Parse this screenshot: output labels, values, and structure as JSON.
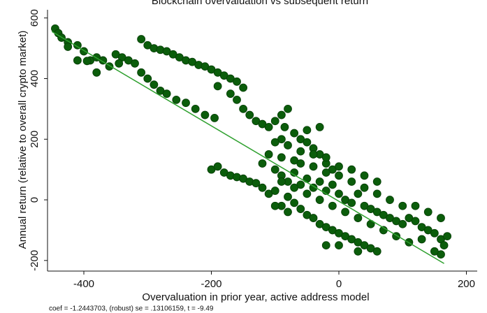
{
  "chart_data": {
    "type": "scatter",
    "title": "Blockchain overvaluation vs subsequent return",
    "x_label": "Overvaluation in prior year, active address model",
    "y_label": "Annual return (relative to overall crypto market)",
    "note": "coef = -1.2443703, (robust) se = .13106159, t = -9.49",
    "xlim": [
      -457,
      217
    ],
    "ylim": [
      -235,
      627
    ],
    "xticks": [
      -400,
      -200,
      0,
      200
    ],
    "yticks": [
      -200,
      0,
      200,
      400,
      600
    ],
    "grid": false,
    "series": [
      {
        "color": "#0b5d0b",
        "x": [
          -445,
          -440,
          -435,
          -425,
          -410,
          -400,
          -390,
          -380,
          -370,
          -360,
          -350,
          -340,
          -330,
          -320,
          -310,
          -300,
          -290,
          -280,
          -270,
          -255,
          -240,
          -225,
          -210,
          -195,
          -380,
          -395,
          -410,
          -345,
          -425,
          -310,
          -300,
          -290,
          -280,
          -270,
          -260,
          -250,
          -240,
          -230,
          -220,
          -210,
          -200,
          -190,
          -180,
          -170,
          -160,
          -150,
          -190,
          -170,
          -160,
          -150,
          -140,
          -130,
          -120,
          -110,
          -100,
          -90,
          -80,
          -85,
          -70,
          -60,
          -50,
          -40,
          -30,
          -20,
          -10,
          -200,
          -190,
          -180,
          -170,
          -160,
          -150,
          -140,
          -130,
          -120,
          -110,
          -100,
          -90,
          -80,
          -70,
          -60,
          -50,
          -40,
          -30,
          -20,
          -10,
          0,
          10,
          20,
          30,
          40,
          50,
          60,
          70,
          80,
          90,
          100,
          110,
          120,
          130,
          140,
          150,
          160,
          165,
          160,
          150,
          -80,
          -70,
          -60,
          -50,
          -40,
          -30,
          -20,
          -10,
          0,
          10,
          20,
          30,
          40,
          50,
          60,
          0,
          -20,
          30,
          -60,
          -40,
          -20,
          0,
          20,
          40,
          60,
          80,
          100,
          120,
          140,
          160,
          170,
          130,
          110,
          90,
          70,
          50,
          30,
          10,
          -10,
          -30,
          -50,
          -70,
          -90,
          -60,
          -40,
          -20,
          0,
          20,
          40,
          60,
          -90,
          -80,
          -50,
          -30,
          -100,
          -110,
          -120,
          -90,
          -70,
          -100,
          -90,
          -80,
          -100
        ],
        "values": [
          565,
          550,
          535,
          520,
          510,
          490,
          460,
          470,
          460,
          440,
          480,
          470,
          460,
          450,
          420,
          400,
          380,
          360,
          350,
          330,
          320,
          300,
          280,
          270,
          420,
          458,
          460,
          450,
          505,
          530,
          510,
          500,
          495,
          490,
          480,
          470,
          460,
          455,
          445,
          440,
          430,
          420,
          410,
          400,
          390,
          370,
          375,
          350,
          330,
          300,
          280,
          260,
          250,
          240,
          260,
          280,
          300,
          240,
          220,
          200,
          190,
          170,
          150,
          120,
          100,
          100,
          110,
          90,
          80,
          75,
          70,
          60,
          55,
          40,
          20,
          100,
          80,
          60,
          90,
          50,
          70,
          40,
          60,
          30,
          50,
          20,
          0,
          -10,
          20,
          -20,
          -30,
          -40,
          -50,
          -60,
          -70,
          -80,
          -60,
          -70,
          -90,
          -100,
          -110,
          -130,
          -150,
          -180,
          -170,
          10,
          -10,
          -30,
          -50,
          -60,
          -80,
          -90,
          -100,
          -110,
          -120,
          -130,
          -140,
          -150,
          -160,
          -170,
          -150,
          -150,
          -170,
          120,
          110,
          90,
          80,
          60,
          40,
          20,
          0,
          -20,
          -20,
          -40,
          -60,
          -120,
          -130,
          -140,
          -120,
          -100,
          -80,
          -60,
          -40,
          -20,
          0,
          20,
          40,
          60,
          160,
          150,
          140,
          110,
          100,
          80,
          60,
          200,
          180,
          230,
          240,
          190,
          150,
          120,
          140,
          130,
          30,
          -20,
          -40,
          -20
        ]
      }
    ],
    "fit_line": {
      "color": "#2ea02e",
      "x": [
        -450,
        165
      ],
      "values": [
        555,
        -210
      ]
    }
  }
}
